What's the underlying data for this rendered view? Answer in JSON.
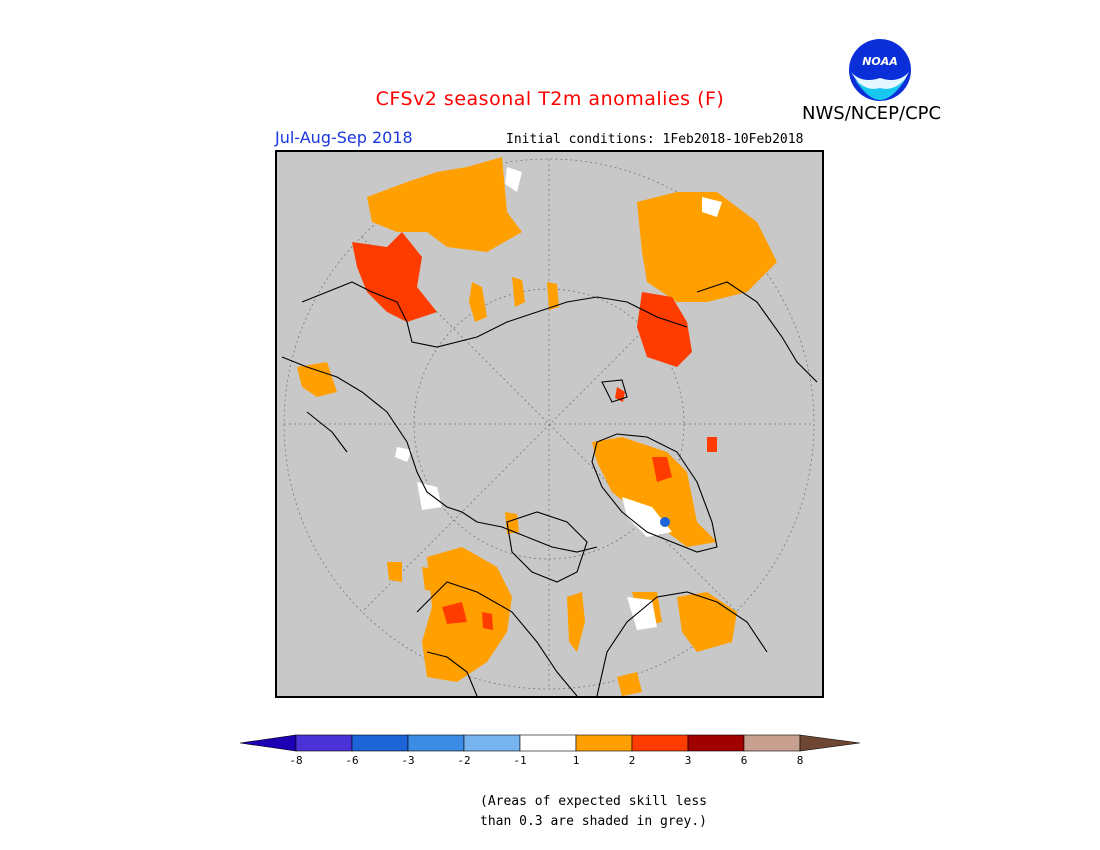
{
  "header": {
    "title": "CFSv2 seasonal T2m anomalies (F)",
    "title_color": "#ff0000",
    "agency": "NWS/NCEP/CPC",
    "logo_text": "NOAA",
    "period": "Jul-Aug-Sep 2018",
    "period_color": "#1a37e0",
    "initial_conditions": "Initial conditions: 1Feb2018-10Feb2018"
  },
  "legend": {
    "colors": [
      "#1e00b4",
      "#4a32d6",
      "#1c64d8",
      "#3c8ce6",
      "#78b4f0",
      "#ffffff",
      "#ffa000",
      "#ff3c00",
      "#a00000",
      "#c8a090",
      "#6e4632"
    ],
    "ticks": [
      "-8",
      "-6",
      "-3",
      "-2",
      "-1",
      "1",
      "2",
      "3",
      "6",
      "8"
    ],
    "note_line1": "(Areas of expected skill less",
    "note_line2": "than 0.3 are shaded in grey.)"
  },
  "map": {
    "background": "#c8c8c8",
    "projection": "north-polar-stereographic"
  }
}
